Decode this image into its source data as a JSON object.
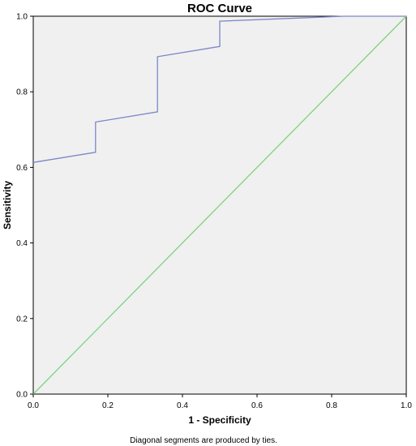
{
  "chart_data": {
    "type": "line",
    "title": "ROC Curve",
    "xlabel": "1 - Specificity",
    "ylabel": "Sensitivity",
    "xlim": [
      0,
      1
    ],
    "ylim": [
      0,
      1
    ],
    "x_ticks": [
      "0.0",
      "0.2",
      "0.4",
      "0.6",
      "0.8",
      "1.0"
    ],
    "y_ticks": [
      "0.0",
      "0.2",
      "0.4",
      "0.6",
      "0.8",
      "1.0"
    ],
    "grid": false,
    "footnote": "Diagonal segments are produced by ties.",
    "series": [
      {
        "color": "#7b86c8",
        "x": [
          0.0,
          0.167,
          0.167,
          0.333,
          0.333,
          0.5,
          0.5,
          0.833,
          1.0
        ],
        "y": [
          0.613,
          0.64,
          0.72,
          0.747,
          0.893,
          0.92,
          0.987,
          1.0,
          1.0
        ]
      },
      {
        "color": "#7fd27f",
        "x": [
          0.0,
          1.0
        ],
        "y": [
          0.0,
          1.0
        ]
      }
    ],
    "plot_background": "#f0f0f0"
  }
}
